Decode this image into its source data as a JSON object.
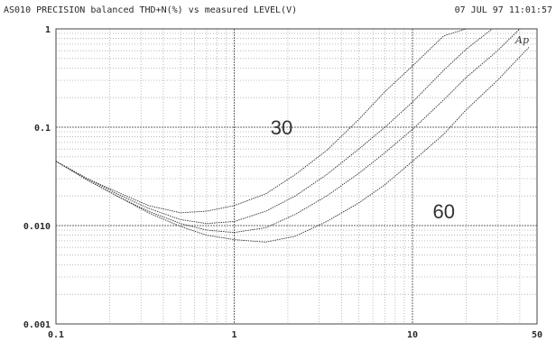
{
  "header": {
    "title": "AS010 PRECISION balanced THD+N(%) vs measured LEVEL(V)",
    "timestamp": "07 JUL 97 11:01:57"
  },
  "logo_text": "Ap",
  "chart_data": {
    "type": "line",
    "x_scale": "log",
    "y_scale": "log",
    "xlim": [
      0.1,
      50
    ],
    "ylim": [
      0.001,
      1
    ],
    "grid": true,
    "x_tick_labels": [
      {
        "value": 0.1,
        "label": "0.1"
      },
      {
        "value": 1,
        "label": "1"
      },
      {
        "value": 10,
        "label": "10"
      },
      {
        "value": 50,
        "label": "50"
      }
    ],
    "y_tick_labels": [
      {
        "value": 1,
        "label": "1"
      },
      {
        "value": 0.1,
        "label": "0.1"
      },
      {
        "value": 0.01,
        "label": "0.010"
      },
      {
        "value": 0.001,
        "label": "0.001"
      }
    ],
    "annotations": [
      {
        "text": "30",
        "x": 1.6,
        "y": 0.1
      },
      {
        "text": "60",
        "x": 13,
        "y": 0.014
      }
    ],
    "series": [
      {
        "x": [
          0.1,
          0.15,
          0.22,
          0.33,
          0.5,
          0.7,
          1.0,
          1.5,
          2.2,
          3.3,
          5.0,
          7.0,
          10,
          15,
          20
        ],
        "y": [
          0.045,
          0.03,
          0.022,
          0.016,
          0.0135,
          0.014,
          0.016,
          0.021,
          0.033,
          0.058,
          0.12,
          0.23,
          0.42,
          0.85,
          1.3
        ]
      },
      {
        "x": [
          0.1,
          0.15,
          0.22,
          0.33,
          0.5,
          0.7,
          1.0,
          1.5,
          2.2,
          3.3,
          5.0,
          7.0,
          10,
          15,
          20,
          28
        ],
        "y": [
          0.045,
          0.03,
          0.021,
          0.015,
          0.0115,
          0.0105,
          0.011,
          0.014,
          0.02,
          0.033,
          0.06,
          0.1,
          0.18,
          0.38,
          0.62,
          1.1
        ]
      },
      {
        "x": [
          0.1,
          0.15,
          0.22,
          0.33,
          0.5,
          0.7,
          1.0,
          1.5,
          2.2,
          3.3,
          5.0,
          7.0,
          10,
          15,
          20,
          30,
          40
        ],
        "y": [
          0.045,
          0.029,
          0.02,
          0.014,
          0.0105,
          0.009,
          0.0085,
          0.0095,
          0.013,
          0.02,
          0.034,
          0.055,
          0.095,
          0.19,
          0.32,
          0.6,
          1.0
        ]
      },
      {
        "x": [
          0.1,
          0.15,
          0.22,
          0.33,
          0.5,
          0.7,
          1.0,
          1.5,
          2.2,
          3.3,
          5.0,
          7.0,
          10,
          15,
          20,
          30,
          45
        ],
        "y": [
          0.045,
          0.029,
          0.02,
          0.0135,
          0.0098,
          0.008,
          0.0072,
          0.0068,
          0.0078,
          0.011,
          0.017,
          0.026,
          0.045,
          0.085,
          0.15,
          0.3,
          0.65
        ]
      }
    ]
  }
}
